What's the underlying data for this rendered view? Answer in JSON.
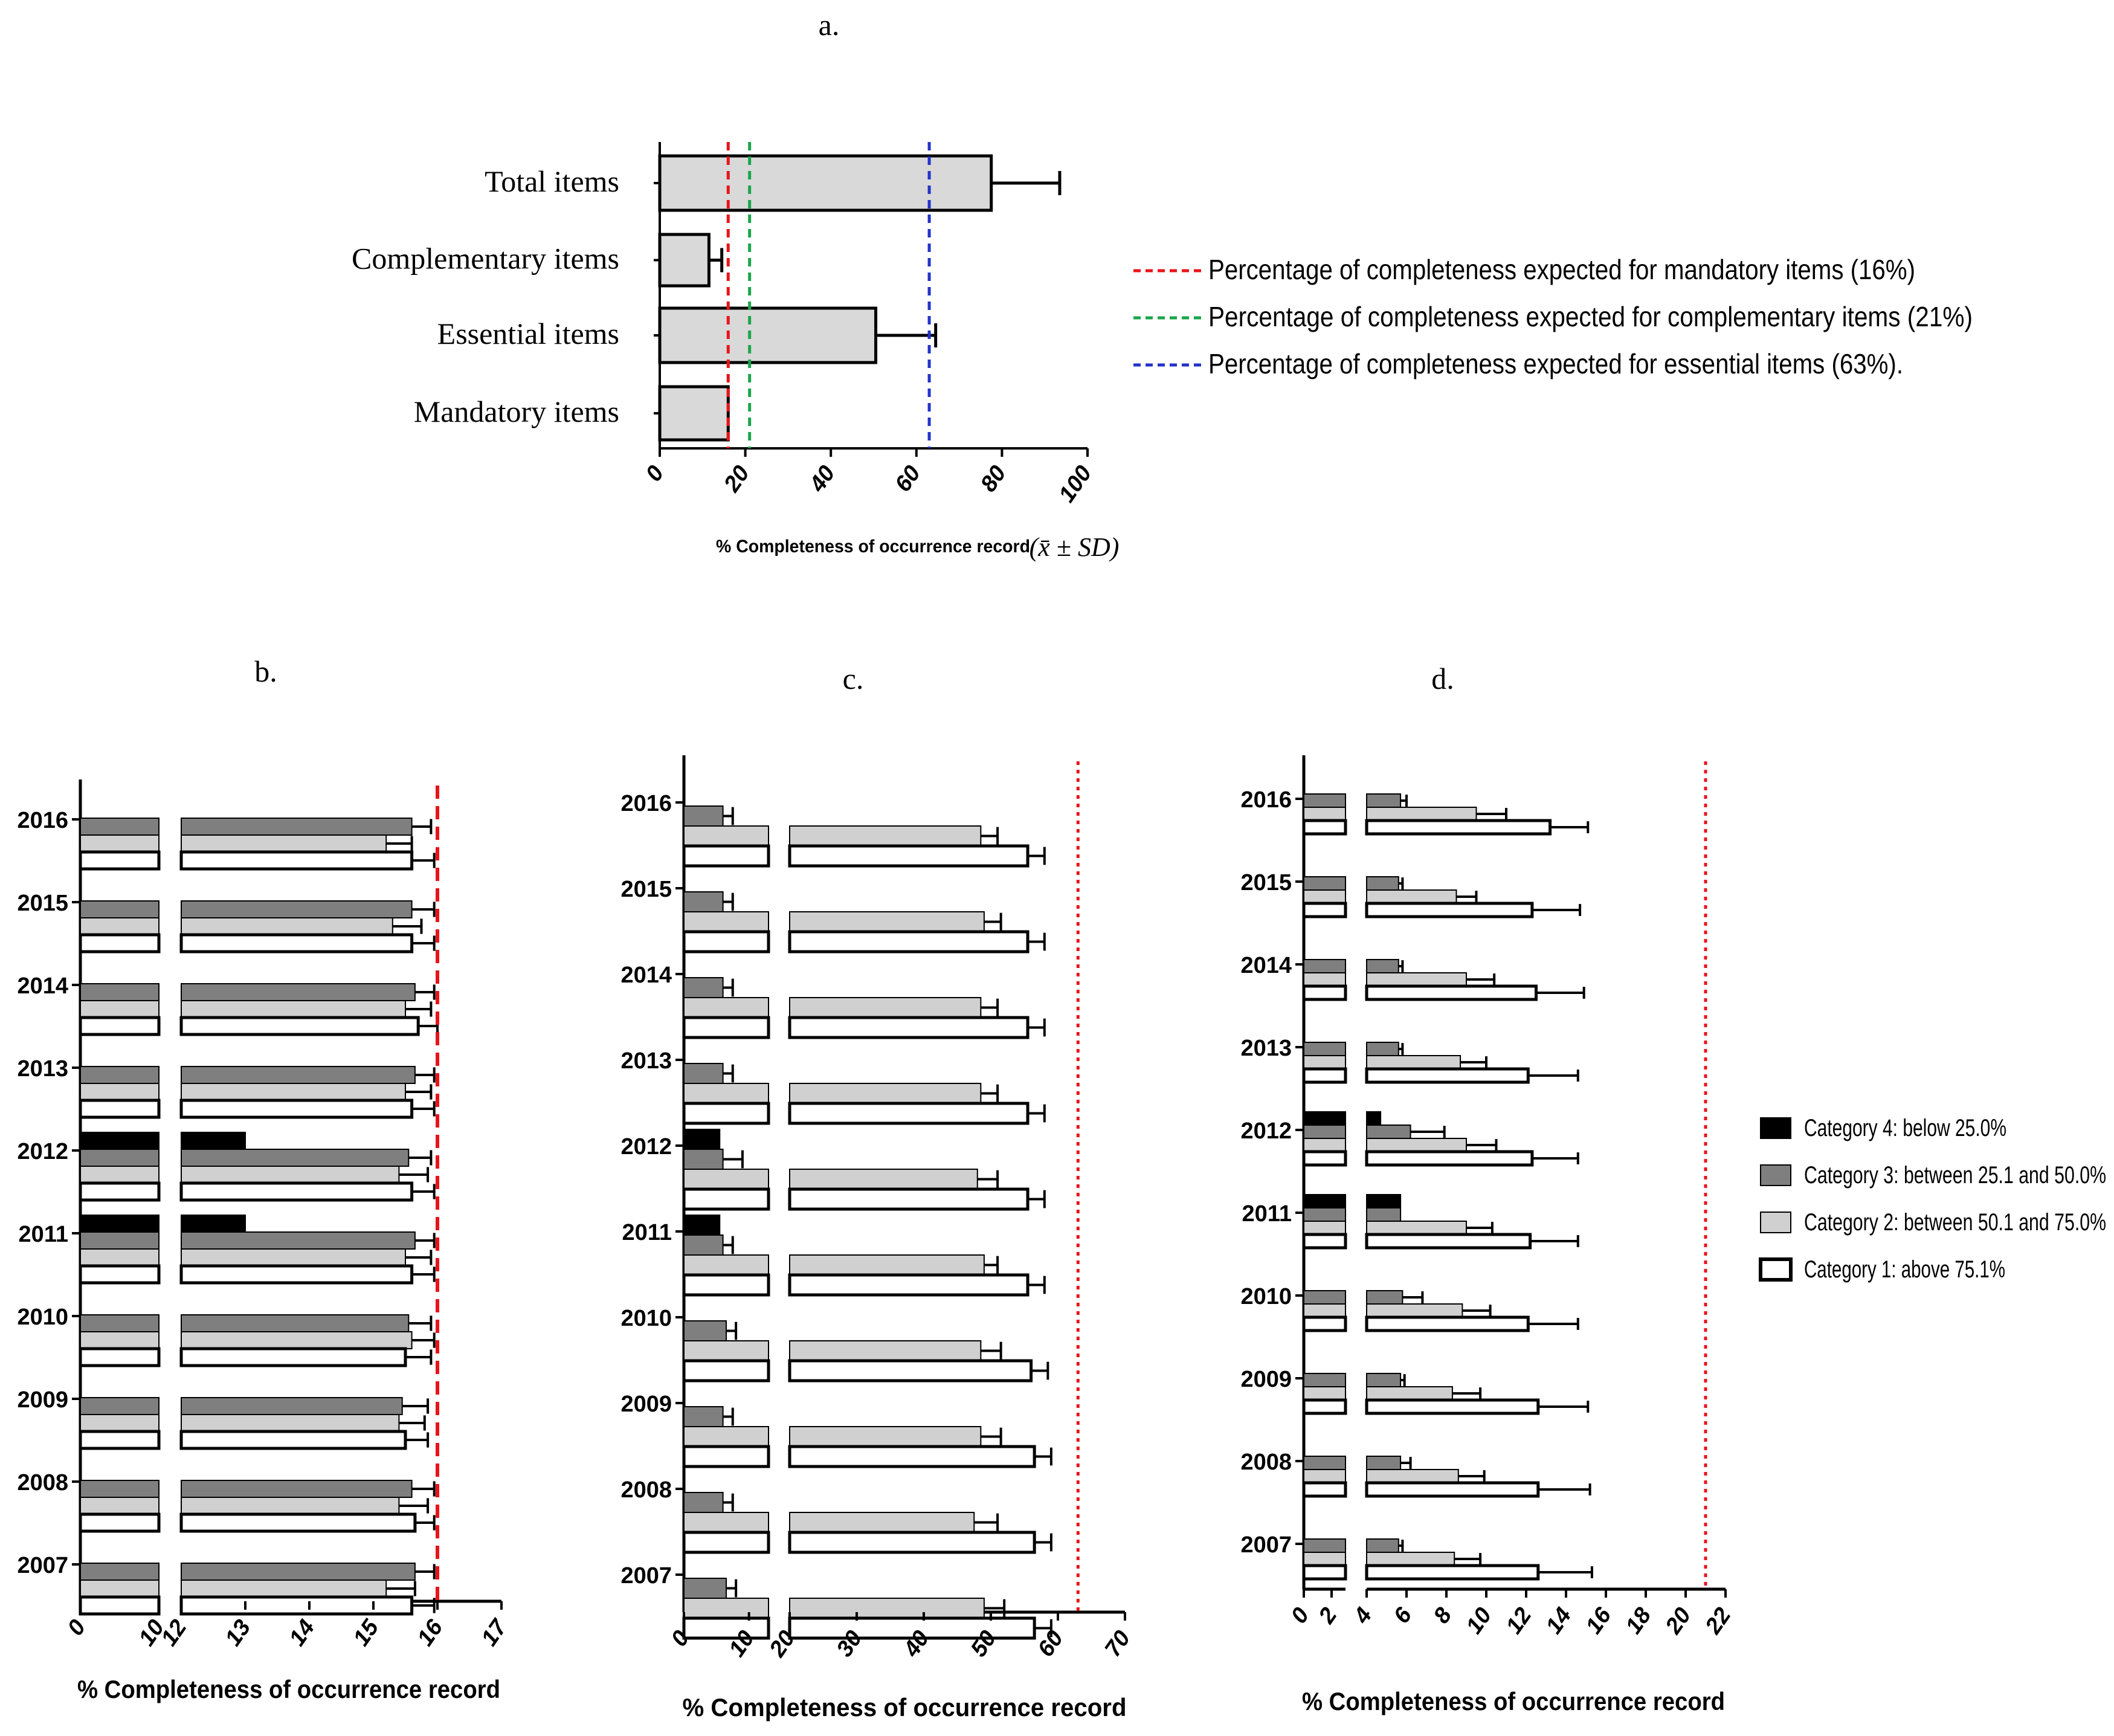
{
  "colors": {
    "cat4": "#000000",
    "cat3": "#7f7f7f",
    "cat2": "#d0d0d0",
    "cat1": "#ffffff",
    "bar_a": "#d9d9d9",
    "red": "#e8141a",
    "green": "#1aa64a",
    "blue": "#2233c8"
  },
  "chart_data": [
    {
      "panel": "a.",
      "type": "bar",
      "orientation": "horizontal",
      "categories": [
        "Total items",
        "Complementary  items",
        "Essential items",
        "Mandatory items"
      ],
      "values": [
        77.5,
        11.5,
        50.5,
        16
      ],
      "errors": [
        16,
        3,
        14,
        0
      ],
      "xlim": [
        0,
        100
      ],
      "xticks": [
        "0",
        "20",
        "40",
        "60",
        "80",
        "100"
      ],
      "xlabel": "% Completeness of occurrence record",
      "xlabel_math": "(x̄ ± SD)",
      "reference_lines": [
        {
          "value": 16,
          "color": "red",
          "label": "Percentage of completeness expected for mandatory  items (16%)"
        },
        {
          "value": 21,
          "color": "green",
          "label": "Percentage of completeness expected for complementary  items (21%)"
        },
        {
          "value": 63,
          "color": "blue",
          "label": "Percentage of completeness expected for essential items (63%)."
        }
      ]
    },
    {
      "panel": "b.",
      "type": "bar",
      "orientation": "horizontal",
      "years": [
        "2016",
        "2015",
        "2014",
        "2013",
        "2012",
        "2011",
        "2010",
        "2009",
        "2008",
        "2007"
      ],
      "series": [
        {
          "name": "Category 4",
          "values": [
            null,
            null,
            null,
            null,
            13,
            13,
            null,
            null,
            null,
            null
          ],
          "errors": [
            0,
            0,
            0,
            0,
            0,
            0,
            0,
            0,
            0,
            0
          ]
        },
        {
          "name": "Category 3",
          "values": [
            15.6,
            15.6,
            15.65,
            15.65,
            15.55,
            15.65,
            15.55,
            15.45,
            15.6,
            15.65
          ],
          "errors": [
            0.3,
            0.35,
            0.3,
            0.3,
            0.35,
            0.3,
            0.35,
            0.4,
            0.35,
            0.3
          ]
        },
        {
          "name": "Category 2",
          "values": [
            15.2,
            15.3,
            15.5,
            15.5,
            15.4,
            15.5,
            15.6,
            15.4,
            15.4,
            15.2
          ],
          "errors": [
            0.4,
            0.45,
            0.4,
            0.4,
            0.45,
            0.4,
            0.35,
            0.4,
            0.45,
            0.45
          ]
        },
        {
          "name": "Category 1",
          "values": [
            15.6,
            15.6,
            15.7,
            15.6,
            15.6,
            15.6,
            15.5,
            15.5,
            15.65,
            15.6
          ],
          "errors": [
            0.35,
            0.35,
            0.3,
            0.35,
            0.35,
            0.35,
            0.4,
            0.35,
            0.3,
            0.35
          ]
        }
      ],
      "xticks": [
        "0",
        "10",
        "12",
        "13",
        "14",
        "15",
        "16",
        "17"
      ],
      "axis_break": [
        11,
        12
      ],
      "xlabel": "% Completeness of occurrence record",
      "reference_line": 16
    },
    {
      "panel": "c.",
      "type": "bar",
      "orientation": "horizontal",
      "years": [
        "2016",
        "2015",
        "2014",
        "2013",
        "2012",
        "2011",
        "2010",
        "2009",
        "2008",
        "2007"
      ],
      "series": [
        {
          "name": "Category 4",
          "values": [
            null,
            null,
            null,
            null,
            5.5,
            5.5,
            null,
            null,
            null,
            null
          ],
          "errors": [
            0,
            0,
            0,
            0,
            0,
            0,
            0,
            0,
            0,
            0
          ]
        },
        {
          "name": "Category 3",
          "values": [
            6,
            6,
            6,
            6,
            6,
            6,
            6.5,
            6,
            6,
            6.5
          ],
          "errors": [
            1.5,
            1.5,
            1.5,
            1.5,
            3,
            1.5,
            1.5,
            1.5,
            1.5,
            1.5
          ]
        },
        {
          "name": "Category 2",
          "values": [
            48.5,
            49,
            48.5,
            48.5,
            48,
            49,
            48.5,
            48.5,
            47.5,
            49
          ],
          "errors": [
            2.5,
            2.5,
            2.5,
            2.5,
            3,
            2,
            3,
            3,
            3.5,
            3
          ]
        },
        {
          "name": "Category 1",
          "values": [
            55.5,
            55.5,
            55.5,
            55.5,
            55.5,
            55.5,
            56,
            56.5,
            56.5,
            56.5
          ],
          "errors": [
            2.5,
            2.5,
            2.5,
            2.5,
            2.5,
            2.5,
            2.5,
            2.5,
            2.5,
            2.5
          ]
        }
      ],
      "xticks": [
        "0",
        "10",
        "20",
        "30",
        "40",
        "50",
        "60",
        "70"
      ],
      "axis_break": [
        13,
        20
      ],
      "xlabel": "% Completeness of occurrence record",
      "reference_line": 63
    },
    {
      "panel": "d.",
      "type": "bar",
      "orientation": "horizontal",
      "years": [
        "2016",
        "2015",
        "2014",
        "2013",
        "2012",
        "2011",
        "2010",
        "2009",
        "2008",
        "2007"
      ],
      "series": [
        {
          "name": "Category 4",
          "values": [
            null,
            null,
            null,
            null,
            4.7,
            5.7,
            null,
            null,
            null,
            null
          ],
          "errors": [
            0,
            0,
            0,
            0,
            0,
            0,
            0,
            0,
            0,
            0
          ]
        },
        {
          "name": "Category 3",
          "values": [
            5.7,
            5.6,
            5.6,
            5.6,
            6.2,
            5.7,
            5.8,
            5.7,
            5.7,
            5.6
          ],
          "errors": [
            0.3,
            0.2,
            0.2,
            0.2,
            1.7,
            0,
            1,
            0.2,
            0.5,
            0.2
          ]
        },
        {
          "name": "Category 2",
          "values": [
            9.5,
            8.5,
            9,
            8.7,
            9,
            9,
            8.8,
            8.3,
            8.6,
            8.4
          ],
          "errors": [
            1.5,
            1,
            1.4,
            1.3,
            1.5,
            1.3,
            1.4,
            1.4,
            1.3,
            1.3
          ]
        },
        {
          "name": "Category 1",
          "values": [
            13.2,
            12.3,
            12.5,
            12.1,
            12.3,
            12.2,
            12.1,
            12.6,
            12.6,
            12.6
          ],
          "errors": [
            1.9,
            2.4,
            2.4,
            2.5,
            2.3,
            2.4,
            2.5,
            2.5,
            2.6,
            2.7
          ]
        }
      ],
      "xticks": [
        "0",
        "2",
        "4",
        "6",
        "8",
        "10",
        "12",
        "14",
        "16",
        "18",
        "20",
        "22"
      ],
      "axis_break": [
        3,
        4
      ],
      "xlabel": "% Completeness of occurrence record",
      "reference_line": 21
    }
  ],
  "legend": [
    {
      "label": "Category 4: below 25.0%",
      "color": "cat4"
    },
    {
      "label": "Category 3: between 25.1 and 50.0%",
      "color": "cat3"
    },
    {
      "label": "Category 2: between 50.1 and 75.0%",
      "color": "cat2"
    },
    {
      "label": "Category 1: above 75.1%",
      "color": "cat1"
    }
  ]
}
